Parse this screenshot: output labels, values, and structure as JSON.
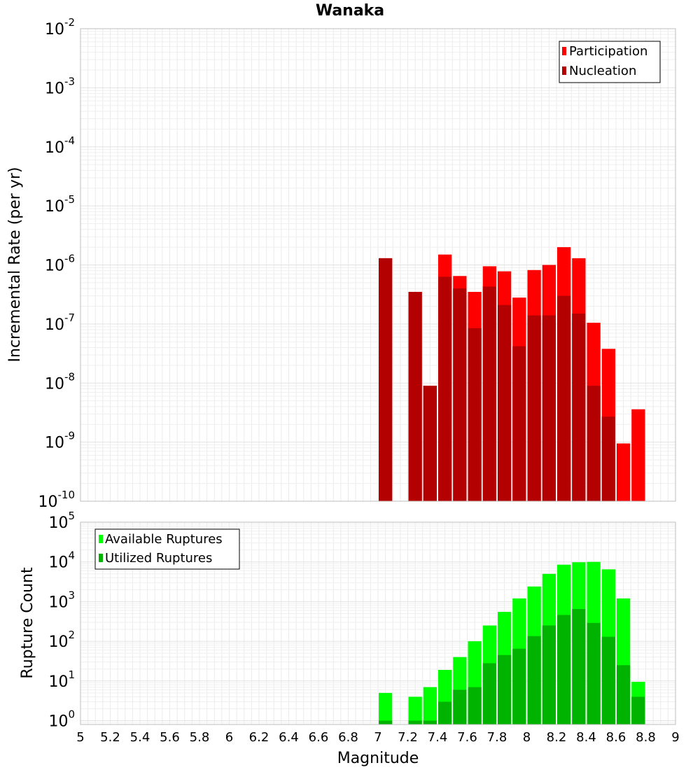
{
  "chart_data": [
    {
      "type": "bar",
      "title": "Wanaka",
      "xlabel": "",
      "ylabel": "Incremental Rate (per yr)",
      "yscale": "log",
      "ylim": [
        1e-10,
        0.01
      ],
      "xlim": [
        5,
        9
      ],
      "grid": true,
      "legend_position": "top-right",
      "ytick_labels": [
        {
          "base": "10",
          "exp": "-2"
        },
        {
          "base": "10",
          "exp": "-3"
        },
        {
          "base": "10",
          "exp": "-4"
        },
        {
          "base": "10",
          "exp": "-5"
        },
        {
          "base": "10",
          "exp": "-6"
        },
        {
          "base": "10",
          "exp": "-7"
        },
        {
          "base": "10",
          "exp": "-8"
        },
        {
          "base": "10",
          "exp": "-9"
        },
        {
          "base": "10",
          "exp": "-10"
        }
      ],
      "series": [
        {
          "name": "Participation",
          "color": "#ff0000",
          "points": [
            {
              "x": 7.05,
              "y": 1.3e-06
            },
            {
              "x": 7.25,
              "y": 3.5e-07
            },
            {
              "x": 7.35,
              "y": 9e-09
            },
            {
              "x": 7.45,
              "y": 1.5e-06
            },
            {
              "x": 7.55,
              "y": 6.5e-07
            },
            {
              "x": 7.65,
              "y": 3.5e-07
            },
            {
              "x": 7.75,
              "y": 9.5e-07
            },
            {
              "x": 7.85,
              "y": 7.8e-07
            },
            {
              "x": 7.95,
              "y": 2.8e-07
            },
            {
              "x": 8.05,
              "y": 8.2e-07
            },
            {
              "x": 8.15,
              "y": 1e-06
            },
            {
              "x": 8.25,
              "y": 2e-06
            },
            {
              "x": 8.35,
              "y": 1.3e-06
            },
            {
              "x": 8.45,
              "y": 1.05e-07
            },
            {
              "x": 8.55,
              "y": 3.8e-08
            },
            {
              "x": 8.65,
              "y": 9.5e-10
            },
            {
              "x": 8.75,
              "y": 3.6e-09
            }
          ]
        },
        {
          "name": "Nucleation",
          "color": "#b30000",
          "points": [
            {
              "x": 7.05,
              "y": 1.3e-06
            },
            {
              "x": 7.25,
              "y": 3.5e-07
            },
            {
              "x": 7.35,
              "y": 9e-09
            },
            {
              "x": 7.45,
              "y": 6.3e-07
            },
            {
              "x": 7.55,
              "y": 4e-07
            },
            {
              "x": 7.65,
              "y": 8.5e-08
            },
            {
              "x": 7.75,
              "y": 4.3e-07
            },
            {
              "x": 7.85,
              "y": 2.1e-07
            },
            {
              "x": 7.95,
              "y": 4.2e-08
            },
            {
              "x": 8.05,
              "y": 1.4e-07
            },
            {
              "x": 8.15,
              "y": 1.4e-07
            },
            {
              "x": 8.25,
              "y": 3e-07
            },
            {
              "x": 8.35,
              "y": 1.5e-07
            },
            {
              "x": 8.45,
              "y": 9e-09
            },
            {
              "x": 8.55,
              "y": 2.7e-09
            }
          ]
        }
      ]
    },
    {
      "type": "bar",
      "title": "",
      "xlabel": "Magnitude",
      "ylabel": "Rupture Count",
      "yscale": "log",
      "ylim": [
        0.8,
        100000.0
      ],
      "xlim": [
        5,
        9
      ],
      "grid": true,
      "legend_position": "top-left",
      "ytick_labels": [
        {
          "base": "10",
          "exp": "5"
        },
        {
          "base": "10",
          "exp": "4"
        },
        {
          "base": "10",
          "exp": "3"
        },
        {
          "base": "10",
          "exp": "2"
        },
        {
          "base": "10",
          "exp": "1"
        },
        {
          "base": "10",
          "exp": "0"
        }
      ],
      "xticks": [
        "5",
        "5.2",
        "5.4",
        "5.6",
        "5.8",
        "6",
        "6.2",
        "6.4",
        "6.6",
        "6.8",
        "7",
        "7.2",
        "7.4",
        "7.6",
        "7.8",
        "8",
        "8.2",
        "8.4",
        "8.6",
        "8.8",
        "9"
      ],
      "series": [
        {
          "name": "Available Ruptures",
          "color": "#00ff00",
          "points": [
            {
              "x": 7.05,
              "y": 5
            },
            {
              "x": 7.25,
              "y": 4
            },
            {
              "x": 7.35,
              "y": 7
            },
            {
              "x": 7.45,
              "y": 19
            },
            {
              "x": 7.55,
              "y": 40
            },
            {
              "x": 7.65,
              "y": 100
            },
            {
              "x": 7.75,
              "y": 250
            },
            {
              "x": 7.85,
              "y": 550
            },
            {
              "x": 7.95,
              "y": 1200
            },
            {
              "x": 8.05,
              "y": 2400
            },
            {
              "x": 8.15,
              "y": 5000
            },
            {
              "x": 8.25,
              "y": 8500
            },
            {
              "x": 8.35,
              "y": 9800
            },
            {
              "x": 8.45,
              "y": 10000
            },
            {
              "x": 8.55,
              "y": 6500
            },
            {
              "x": 8.65,
              "y": 1200
            },
            {
              "x": 8.75,
              "y": 9.5
            }
          ]
        },
        {
          "name": "Utilized Ruptures",
          "color": "#00b300",
          "points": [
            {
              "x": 7.05,
              "y": 1
            },
            {
              "x": 7.25,
              "y": 1
            },
            {
              "x": 7.35,
              "y": 1
            },
            {
              "x": 7.45,
              "y": 3
            },
            {
              "x": 7.55,
              "y": 6
            },
            {
              "x": 7.65,
              "y": 7
            },
            {
              "x": 7.75,
              "y": 28
            },
            {
              "x": 7.85,
              "y": 45
            },
            {
              "x": 7.95,
              "y": 65
            },
            {
              "x": 8.05,
              "y": 135
            },
            {
              "x": 8.15,
              "y": 250
            },
            {
              "x": 8.25,
              "y": 460
            },
            {
              "x": 8.35,
              "y": 650
            },
            {
              "x": 8.45,
              "y": 290
            },
            {
              "x": 8.55,
              "y": 130
            },
            {
              "x": 8.65,
              "y": 25
            },
            {
              "x": 8.75,
              "y": 4
            }
          ]
        }
      ]
    }
  ]
}
